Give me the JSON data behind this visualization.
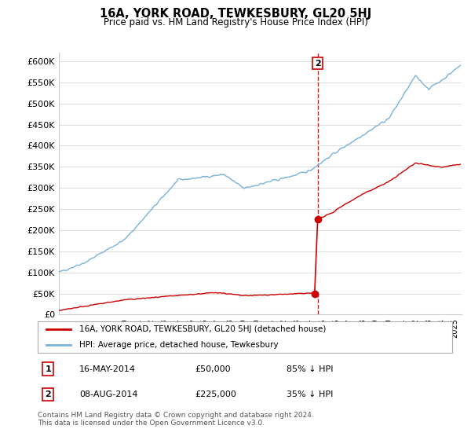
{
  "title": "16A, YORK ROAD, TEWKESBURY, GL20 5HJ",
  "subtitle": "Price paid vs. HM Land Registry's House Price Index (HPI)",
  "ylabel_ticks": [
    "£0",
    "£50K",
    "£100K",
    "£150K",
    "£200K",
    "£250K",
    "£300K",
    "£350K",
    "£400K",
    "£450K",
    "£500K",
    "£550K",
    "£600K"
  ],
  "ylim": [
    0,
    620000
  ],
  "xlim_start": 1995.0,
  "xlim_end": 2025.5,
  "hpi_color": "#7ab4d8",
  "price_color": "#cc0000",
  "marker1_date": 2014.37,
  "marker1_price": 50000,
  "marker1_label": "1",
  "marker2_date": 2014.6,
  "marker2_price": 225000,
  "marker2_label": "2",
  "legend_property": "16A, YORK ROAD, TEWKESBURY, GL20 5HJ (detached house)",
  "legend_hpi": "HPI: Average price, detached house, Tewkesbury",
  "table_rows": [
    {
      "num": "1",
      "date": "16-MAY-2014",
      "price": "£50,000",
      "pct": "85% ↓ HPI"
    },
    {
      "num": "2",
      "date": "08-AUG-2014",
      "price": "£225,000",
      "pct": "35% ↓ HPI"
    }
  ],
  "footnote": "Contains HM Land Registry data © Crown copyright and database right 2024.\nThis data is licensed under the Open Government Licence v3.0.",
  "bg_color": "#ffffff",
  "grid_color": "#dddddd"
}
